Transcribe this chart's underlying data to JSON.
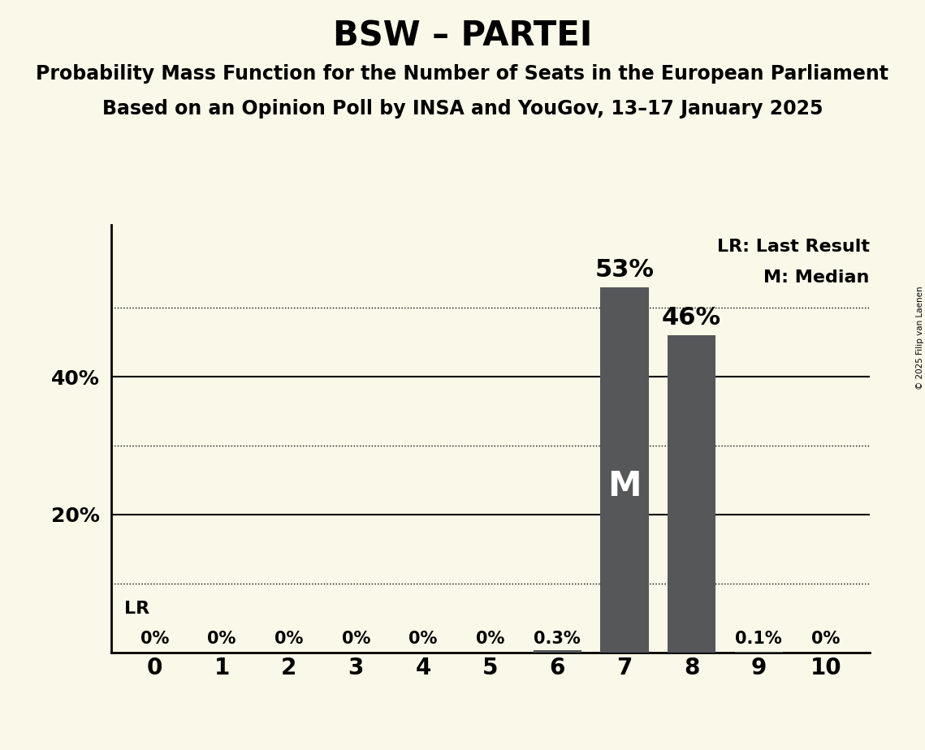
{
  "title": "BSW – PARTEI",
  "subtitle1": "Probability Mass Function for the Number of Seats in the European Parliament",
  "subtitle2": "Based on an Opinion Poll by INSA and YouGov, 13–17 January 2025",
  "copyright": "© 2025 Filip van Laenen",
  "categories": [
    0,
    1,
    2,
    3,
    4,
    5,
    6,
    7,
    8,
    9,
    10
  ],
  "values": [
    0.0,
    0.0,
    0.0,
    0.0,
    0.0,
    0.0,
    0.3,
    53.0,
    46.0,
    0.1,
    0.0
  ],
  "bar_labels": [
    "0%",
    "0%",
    "0%",
    "0%",
    "0%",
    "0%",
    "0.3%",
    "",
    "",
    "0.1%",
    "0%"
  ],
  "bar_color": "#555759",
  "median_bar_index": 7,
  "background_color": "#faf8e8",
  "title_fontsize": 30,
  "subtitle_fontsize": 17,
  "label_fontsize": 15,
  "bar_value_fontsize": 15,
  "big_label_fontsize": 22,
  "m_fontsize": 30,
  "ytick_fontsize": 18,
  "xtick_fontsize": 20,
  "ylim": [
    0,
    62
  ],
  "legend_lr": "LR: Last Result",
  "legend_m": "M: Median",
  "gridlines_dotted": [
    10,
    30,
    50
  ],
  "gridlines_solid": [
    20,
    40
  ],
  "bar_label_53": "53%",
  "bar_label_46": "46%"
}
